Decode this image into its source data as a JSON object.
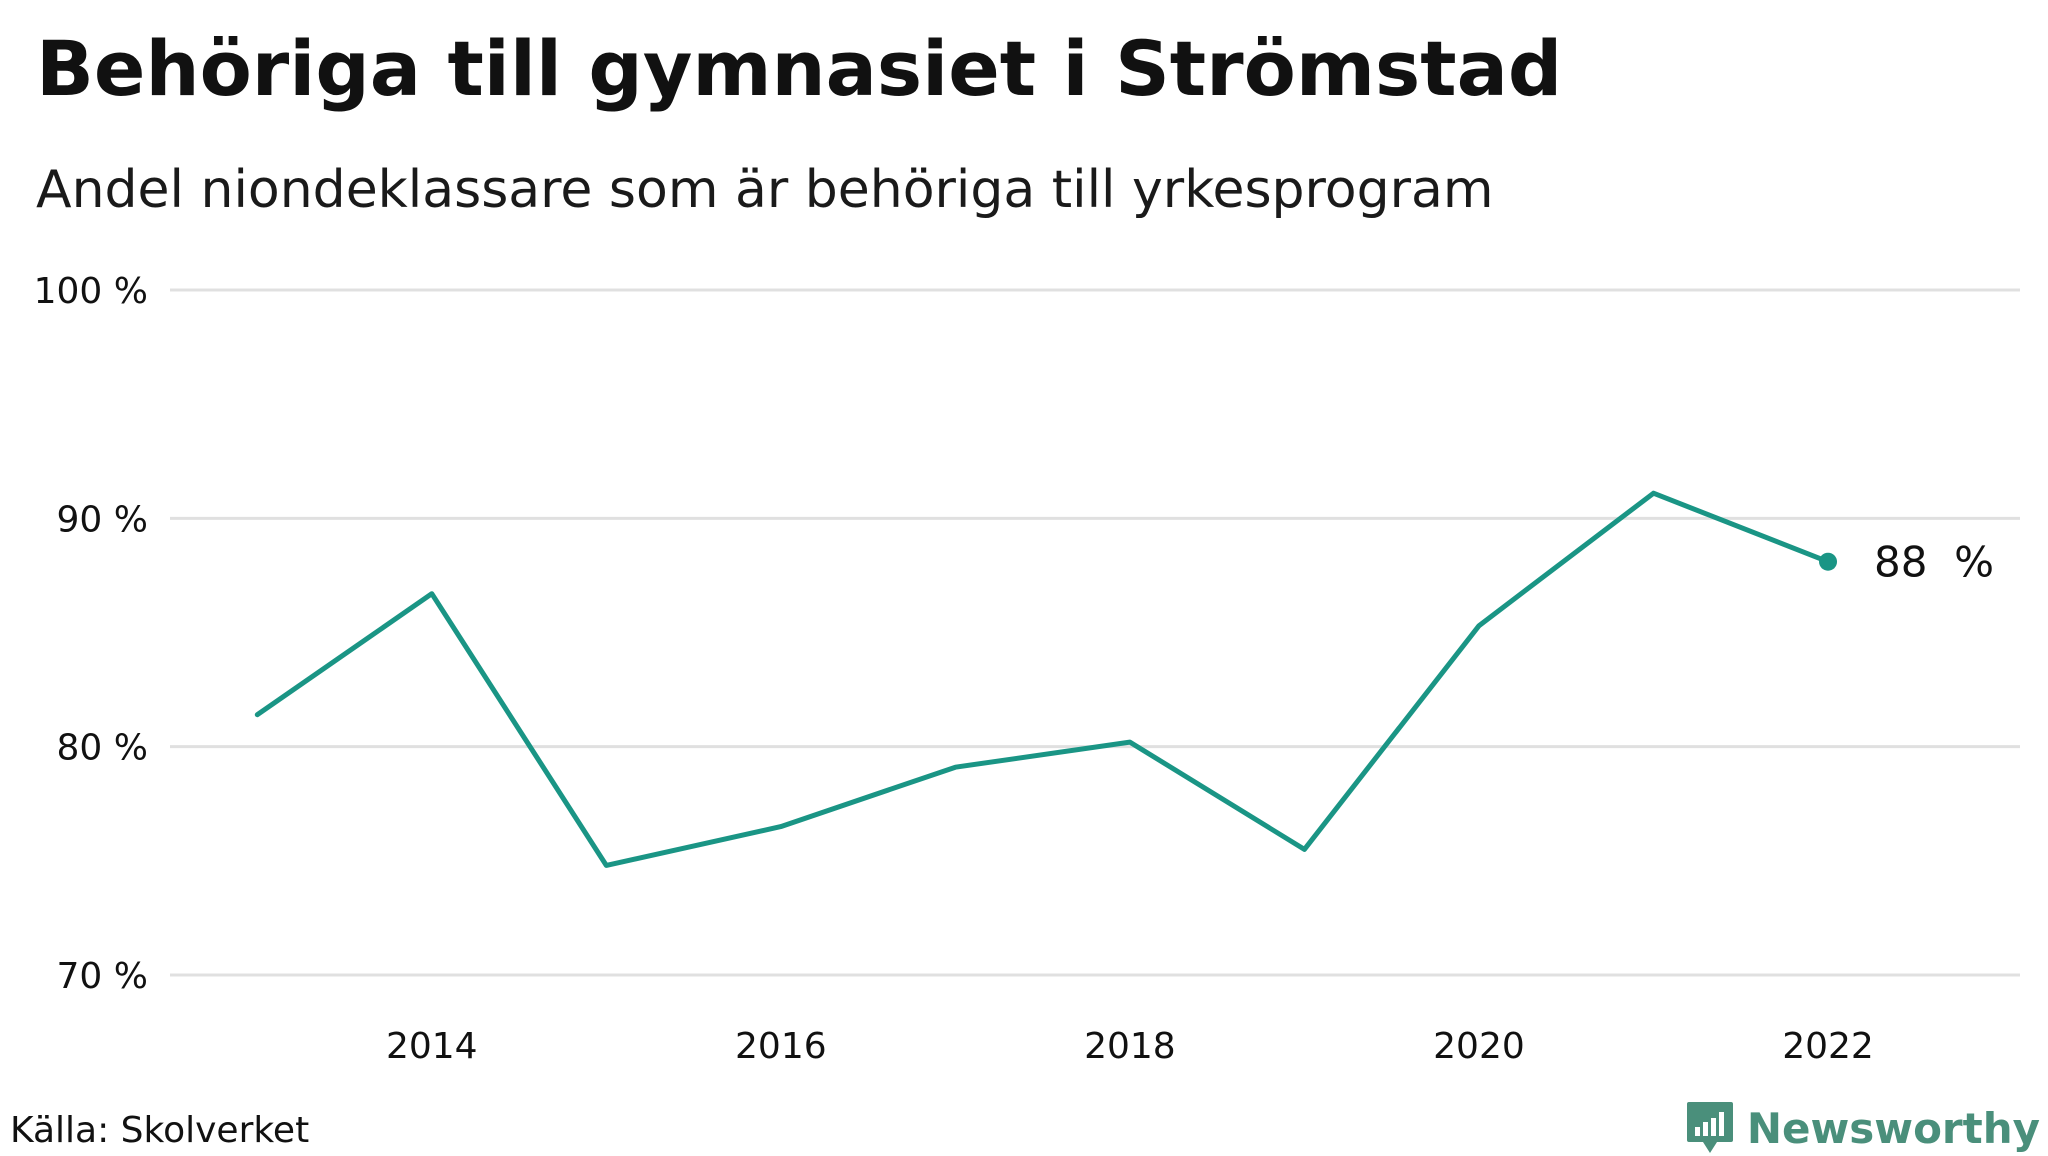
{
  "title": "Behöriga till gymnasiet i Strömstad",
  "subtitle": "Andel niondeklassare som är behöriga till yrkesprogram",
  "source": "Källa: Skolverket",
  "brand": {
    "name": "Newsworthy",
    "color": "#4a8f7b",
    "icon": "bar-chart-logo-icon"
  },
  "colors": {
    "line": "#1a9585",
    "grid": "#e0e0e0",
    "text": "#111111"
  },
  "chart_data": {
    "type": "line",
    "title": "Behöriga till gymnasiet i Strömstad",
    "subtitle": "Andel niondeklassare som är behöriga till yrkesprogram",
    "xlabel": "",
    "ylabel": "",
    "x": [
      2013,
      2014,
      2015,
      2016,
      2017,
      2018,
      2019,
      2020,
      2021,
      2022
    ],
    "series": [
      {
        "name": "Strömstad",
        "values": [
          81.4,
          86.7,
          74.8,
          76.5,
          79.1,
          80.2,
          75.5,
          85.3,
          91.1,
          88.1
        ]
      }
    ],
    "xlim": [
      2012.5,
      2023.1
    ],
    "ylim": [
      70,
      100
    ],
    "yticks": [
      100,
      90,
      80,
      70
    ],
    "ytick_labels": [
      "100 %",
      "90 %",
      "80 %",
      "70 %"
    ],
    "xticks": [
      2014,
      2016,
      2018,
      2020,
      2022
    ],
    "xtick_labels": [
      "2014",
      "2016",
      "2018",
      "2020",
      "2022"
    ],
    "end_label": "88  %",
    "grid": true,
    "legend": "none"
  }
}
